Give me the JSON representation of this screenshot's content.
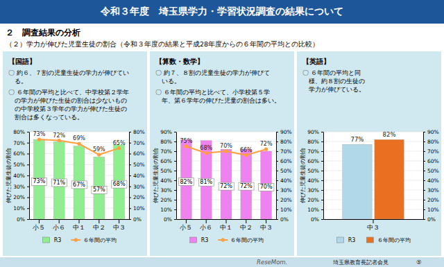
{
  "title": "令和３年度　埼玉県学力・学習状況調査の結果について",
  "subtitle": "（２）学力が伸びた児童生徒の割合（令和３年度の結果と平成28年度からの６年間の平均との比較）",
  "annotations": [
    "２　調査結果の分析",
    "埼玉県教育長記者会見",
    "⑤",
    "ReseMom."
  ],
  "chart_data": [
    {
      "type": "bar",
      "title": "【国語】",
      "annotations": [
        "〇 約６、７割の児童生徒の学力が伸びてい\n   る。",
        "〇 ６年間の平均と比べて、中学校第２学年\n   の学力が伸びた生徒の割合は少ないもの\n   の中学校第３学年の学力が伸びた生徒の\n   割合は多くなっている。"
      ],
      "categories": [
        "小５",
        "小６",
        "中１",
        "中２",
        "中３"
      ],
      "series": [
        {
          "name": "R3",
          "type": "bar",
          "color": "#90EE90",
          "values": [
            73,
            71,
            67,
            57,
            68
          ],
          "value_labels": [
            "73%",
            "71%",
            "67%",
            "57%",
            "68%"
          ]
        },
        {
          "name": "６年間の平均",
          "type": "line",
          "color": "#FFA040",
          "marker": "circle",
          "values": [
            73,
            72,
            69,
            59,
            65
          ],
          "value_labels": [
            "73%",
            "72%",
            "69%",
            "59%",
            "65%"
          ]
        }
      ],
      "ylabel": "伸びた児童生徒の割合",
      "ylim": [
        0,
        80
      ],
      "yticks": [
        {
          "value": 0,
          "label": "0%"
        },
        {
          "value": 10,
          "label": "10%"
        },
        {
          "value": 20,
          "label": "20%"
        },
        {
          "value": 30,
          "label": "30%"
        },
        {
          "value": 40,
          "label": "40%"
        },
        {
          "value": 50,
          "label": "50%"
        },
        {
          "value": 60,
          "label": "60%"
        },
        {
          "value": 70,
          "label": "70%"
        },
        {
          "value": 80,
          "label": "80%"
        }
      ],
      "y2lim": [
        0,
        80
      ],
      "y2ticks": [
        {
          "value": 0,
          "label": "0%"
        },
        {
          "value": 10,
          "label": "10%"
        },
        {
          "value": 20,
          "label": "20%"
        },
        {
          "value": 30,
          "label": "30%"
        },
        {
          "value": 40,
          "label": "40%"
        },
        {
          "value": 50,
          "label": "50%"
        },
        {
          "value": 60,
          "label": "60%"
        },
        {
          "value": 70,
          "label": "70%"
        },
        {
          "value": 80,
          "label": "80%"
        }
      ],
      "grid": true,
      "legend": "bottom",
      "data_labels": true
    },
    {
      "type": "bar",
      "title": "【算数・数学】",
      "annotations": [
        "〇 約７、８割の児童生徒の学力が伸びて\n   いる。",
        "〇 ６年間の平均と比べて、小学校第５学\n   年、第６学年の伸びた児童の割合は多い。"
      ],
      "categories": [
        "小５",
        "小６",
        "中１",
        "中２",
        "中３"
      ],
      "series": [
        {
          "name": "R3",
          "type": "bar",
          "color": "#EE82EE",
          "values": [
            82,
            81,
            72,
            72,
            70
          ],
          "value_labels": [
            "82%",
            "81%",
            "72%",
            "72%",
            "70%"
          ]
        },
        {
          "name": "６年間の平均",
          "type": "line",
          "color": "#FFA040",
          "marker": "circle",
          "values": [
            75,
            68,
            70,
            66,
            72
          ],
          "value_labels": [
            "75%",
            "68%",
            "70%",
            "66%",
            "72%"
          ]
        }
      ],
      "ylabel": "伸びた児童生徒の割合",
      "ylim": [
        0,
        90
      ],
      "yticks": [
        {
          "value": 0,
          "label": "0%"
        },
        {
          "value": 10,
          "label": "10%"
        },
        {
          "value": 20,
          "label": "20%"
        },
        {
          "value": 30,
          "label": "30%"
        },
        {
          "value": 40,
          "label": "40%"
        },
        {
          "value": 50,
          "label": "50%"
        },
        {
          "value": 60,
          "label": "60%"
        },
        {
          "value": 70,
          "label": "70%"
        },
        {
          "value": 80,
          "label": "80%"
        },
        {
          "value": 90,
          "label": "90%"
        }
      ],
      "y2lim": [
        0,
        90
      ],
      "y2ticks": [
        {
          "value": 0,
          "label": "0%"
        },
        {
          "value": 10,
          "label": "10%"
        },
        {
          "value": 20,
          "label": "20%"
        },
        {
          "value": 30,
          "label": "30%"
        },
        {
          "value": 40,
          "label": "40%"
        },
        {
          "value": 50,
          "label": "50%"
        },
        {
          "value": 60,
          "label": "60%"
        },
        {
          "value": 70,
          "label": "70%"
        },
        {
          "value": 80,
          "label": "80%"
        },
        {
          "value": 90,
          "label": "90%"
        }
      ],
      "grid": true,
      "legend": "bottom",
      "data_labels": true
    },
    {
      "type": "bar",
      "title": "【英語】",
      "annotations": [
        "〇 ６年間の平均と同\n   様、約８割の生徒の\n   学力が伸びている。"
      ],
      "categories": [
        "中３"
      ],
      "series": [
        {
          "name": "R3",
          "type": "bar",
          "color": "#B0D8E8",
          "values": [
            77
          ],
          "value_labels": [
            "77%"
          ]
        },
        {
          "name": "６年間の平均",
          "type": "bar",
          "color": "#E87020",
          "values": [
            82
          ],
          "value_labels": [
            "82%"
          ]
        }
      ],
      "ylabel": "伸びた児童生徒の割合",
      "ylim": [
        0,
        90
      ],
      "yticks": [
        {
          "value": 0,
          "label": "0%"
        },
        {
          "value": 10,
          "label": "10%"
        },
        {
          "value": 20,
          "label": "20%"
        },
        {
          "value": 30,
          "label": "30%"
        },
        {
          "value": 40,
          "label": "40%"
        },
        {
          "value": 50,
          "label": "50%"
        },
        {
          "value": 60,
          "label": "60%"
        },
        {
          "value": 70,
          "label": "70%"
        },
        {
          "value": 80,
          "label": "80%"
        },
        {
          "value": 90,
          "label": "90%"
        }
      ],
      "y2lim": [
        0,
        90
      ],
      "y2ticks": [
        {
          "value": 0,
          "label": "0%"
        },
        {
          "value": 10,
          "label": "10%"
        },
        {
          "value": 20,
          "label": "20%"
        },
        {
          "value": 30,
          "label": "30%"
        },
        {
          "value": 40,
          "label": "40%"
        },
        {
          "value": 50,
          "label": "50%"
        },
        {
          "value": 60,
          "label": "60%"
        },
        {
          "value": 70,
          "label": "70%"
        },
        {
          "value": 80,
          "label": "80%"
        },
        {
          "value": 90,
          "label": "90%"
        }
      ],
      "grid": true,
      "legend": "bottom",
      "data_labels": true
    }
  ]
}
